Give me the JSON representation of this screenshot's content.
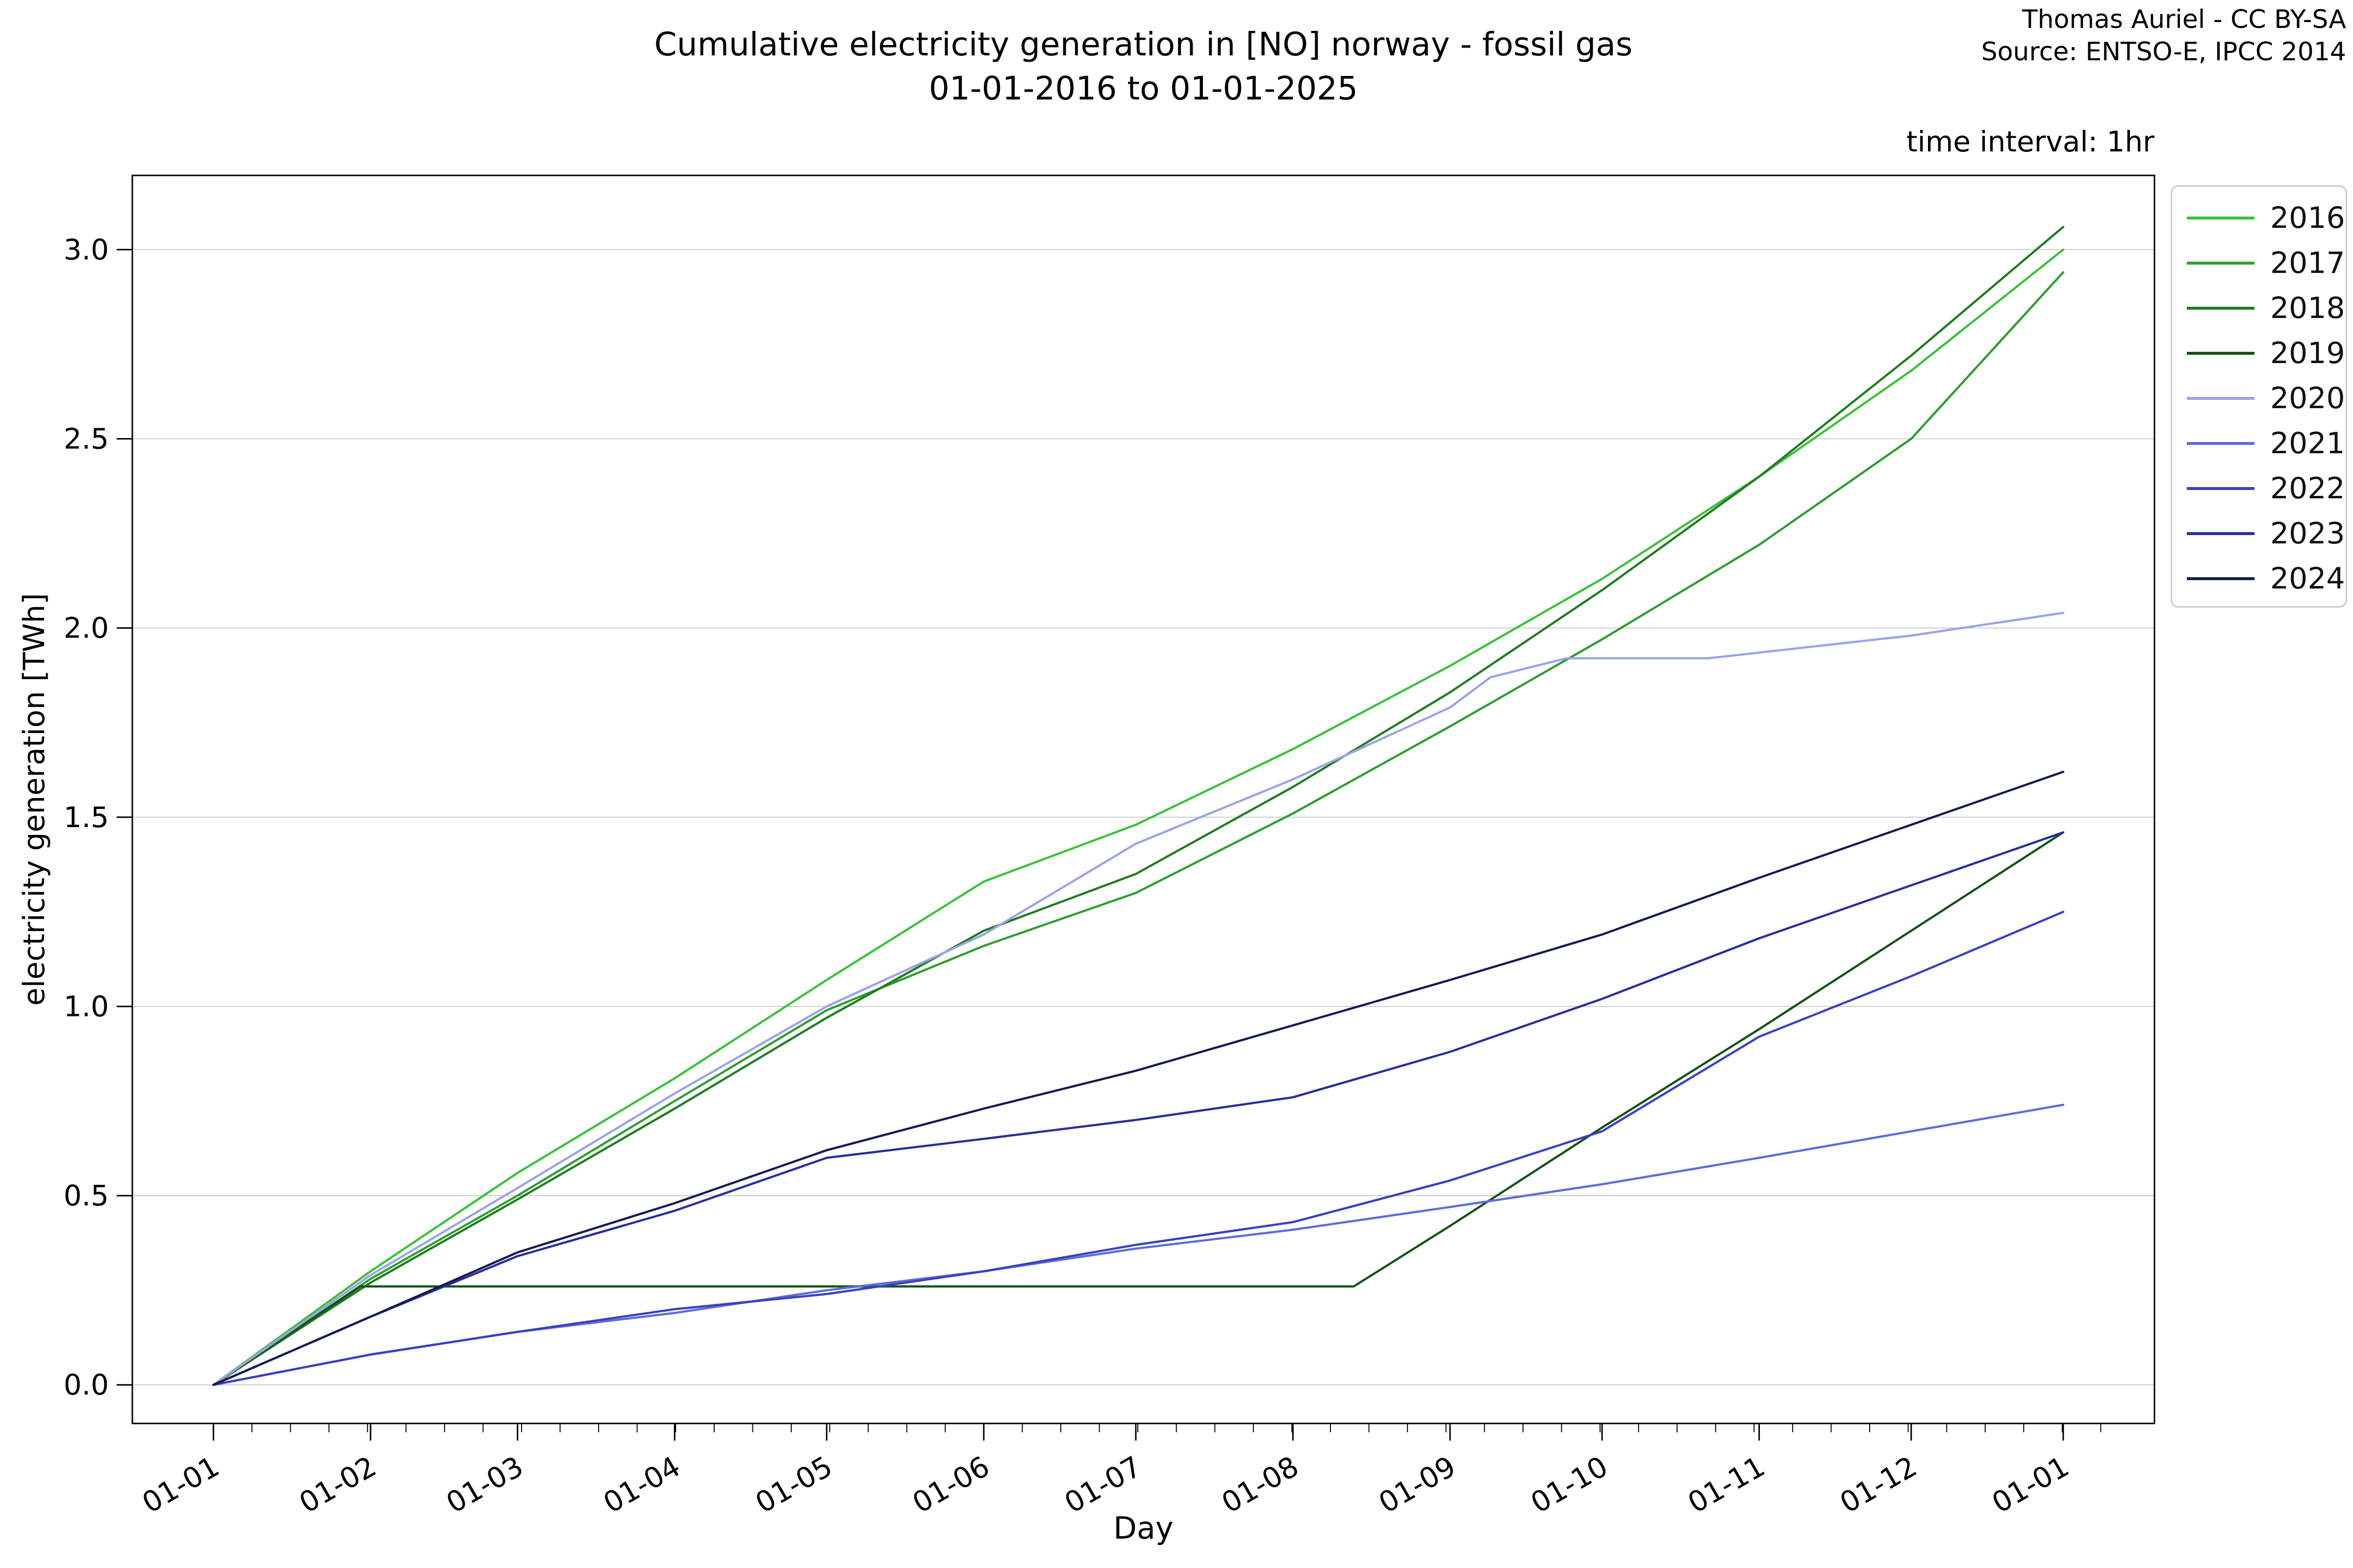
{
  "header": {
    "title_line1": "Cumulative electricity generation in [NO] norway - fossil gas",
    "title_line2": "01-01-2016 to 01-01-2025",
    "attribution_line1": "Thomas Auriel - CC BY-SA",
    "attribution_line2": "Source: ENTSO-E, IPCC 2014",
    "time_interval_label": "time interval: 1hr"
  },
  "legend": {
    "position": "upper right, outside plot"
  },
  "chart_data": {
    "type": "line",
    "title": "Cumulative electricity generation in [NO] norway - fossil gas 01-01-2016 to 01-01-2025",
    "xlabel": "Day",
    "ylabel": "electricity generation [TWh]",
    "grid": true,
    "background": "#ffffff",
    "grid_color": "#cccccc",
    "spine_color": "#000000",
    "y_ticks": [
      0.0,
      0.5,
      1.0,
      1.5,
      2.0,
      2.5,
      3.0
    ],
    "ylim": [
      -0.102,
      3.196
    ],
    "x_tick_labels": [
      "01-01",
      "01-02",
      "01-03",
      "01-04",
      "01-05",
      "01-06",
      "01-07",
      "01-08",
      "01-09",
      "01-10",
      "01-11",
      "01-12",
      "01-01"
    ],
    "x_tick_days": [
      0,
      31,
      60,
      91,
      121,
      152,
      182,
      213,
      244,
      274,
      305,
      335,
      365
    ],
    "xlim_days": [
      -16,
      383
    ],
    "minor_tick_step_days": 7.6,
    "series": [
      {
        "name": "2016",
        "color": "#3ac13a",
        "days": [
          0,
          31,
          60,
          91,
          121,
          152,
          182,
          213,
          244,
          274,
          305,
          335,
          365
        ],
        "values": [
          0,
          0.3,
          0.56,
          0.81,
          1.07,
          1.33,
          1.48,
          1.68,
          1.9,
          2.13,
          2.4,
          2.68,
          3.0
        ]
      },
      {
        "name": "2017",
        "color": "#2e9e2e",
        "days": [
          0,
          31,
          60,
          91,
          121,
          152,
          182,
          213,
          244,
          274,
          305,
          335,
          365
        ],
        "values": [
          0,
          0.28,
          0.5,
          0.75,
          0.99,
          1.16,
          1.3,
          1.51,
          1.74,
          1.97,
          2.22,
          2.5,
          2.94
        ]
      },
      {
        "name": "2018",
        "color": "#1f7d1f",
        "days": [
          0,
          31,
          60,
          91,
          121,
          152,
          182,
          213,
          244,
          274,
          305,
          335,
          365
        ],
        "values": [
          0,
          0.27,
          0.49,
          0.73,
          0.97,
          1.2,
          1.35,
          1.58,
          1.83,
          2.1,
          2.4,
          2.72,
          3.06
        ]
      },
      {
        "name": "2019",
        "color": "#145214",
        "days": [
          0,
          29,
          225,
          244,
          274,
          305,
          335,
          365
        ],
        "values": [
          0,
          0.26,
          0.26,
          0.42,
          0.68,
          0.94,
          1.2,
          1.46
        ]
      },
      {
        "name": "2020",
        "color": "#9aa3e8",
        "days": [
          0,
          31,
          60,
          91,
          121,
          152,
          182,
          213,
          244,
          252,
          267,
          295,
          335,
          365
        ],
        "values": [
          0,
          0.29,
          0.52,
          0.77,
          1.0,
          1.19,
          1.43,
          1.6,
          1.79,
          1.87,
          1.92,
          1.92,
          1.98,
          2.04
        ]
      },
      {
        "name": "2021",
        "color": "#5f6cdb",
        "days": [
          0,
          31,
          60,
          91,
          121,
          152,
          182,
          213,
          244,
          274,
          305,
          335,
          365
        ],
        "values": [
          0,
          0.08,
          0.14,
          0.19,
          0.25,
          0.3,
          0.36,
          0.41,
          0.47,
          0.53,
          0.6,
          0.67,
          0.74
        ]
      },
      {
        "name": "2022",
        "color": "#3840c3",
        "days": [
          0,
          31,
          60,
          91,
          121,
          152,
          182,
          213,
          244,
          274,
          305,
          335,
          365
        ],
        "values": [
          0,
          0.08,
          0.14,
          0.2,
          0.24,
          0.3,
          0.37,
          0.43,
          0.54,
          0.67,
          0.92,
          1.08,
          1.25
        ]
      },
      {
        "name": "2023",
        "color": "#272e9c",
        "days": [
          0,
          31,
          60,
          91,
          121,
          152,
          182,
          213,
          244,
          274,
          305,
          335,
          365
        ],
        "values": [
          0,
          0.18,
          0.34,
          0.46,
          0.6,
          0.65,
          0.7,
          0.76,
          0.88,
          1.02,
          1.18,
          1.32,
          1.46
        ]
      },
      {
        "name": "2024",
        "color": "#141a52",
        "days": [
          0,
          31,
          60,
          91,
          121,
          152,
          182,
          213,
          244,
          274,
          305,
          335,
          365
        ],
        "values": [
          0,
          0.18,
          0.35,
          0.48,
          0.62,
          0.73,
          0.83,
          0.95,
          1.07,
          1.19,
          1.34,
          1.48,
          1.62
        ]
      }
    ]
  }
}
